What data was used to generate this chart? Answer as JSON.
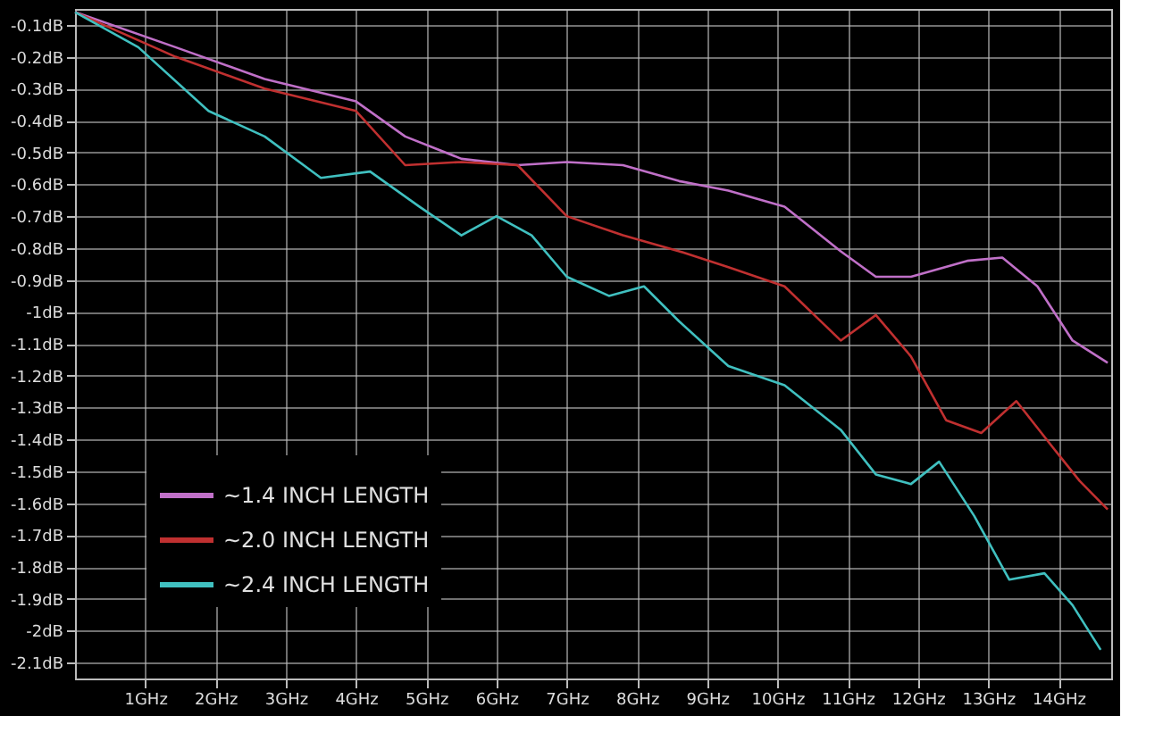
{
  "chart_data": {
    "type": "line",
    "xlim": [
      0,
      14.75
    ],
    "ylim": [
      -2.15,
      -0.05
    ],
    "xticks": [
      {
        "value": 1,
        "label": "1GHz"
      },
      {
        "value": 2,
        "label": "2GHz"
      },
      {
        "value": 3,
        "label": "3GHz"
      },
      {
        "value": 4,
        "label": "4GHz"
      },
      {
        "value": 5,
        "label": "5GHz"
      },
      {
        "value": 6,
        "label": "6GHz"
      },
      {
        "value": 7,
        "label": "7GHz"
      },
      {
        "value": 8,
        "label": "8GHz"
      },
      {
        "value": 9,
        "label": "9GHz"
      },
      {
        "value": 10,
        "label": "10GHz"
      },
      {
        "value": 11,
        "label": "11GHz"
      },
      {
        "value": 12,
        "label": "12GHz"
      },
      {
        "value": 13,
        "label": "13GHz"
      },
      {
        "value": 14,
        "label": "14GHz"
      }
    ],
    "yticks": [
      {
        "value": -0.1,
        "label": "-0.1dB"
      },
      {
        "value": -0.2,
        "label": "-0.2dB"
      },
      {
        "value": -0.3,
        "label": "-0.3dB"
      },
      {
        "value": -0.4,
        "label": "-0.4dB"
      },
      {
        "value": -0.5,
        "label": "-0.5dB"
      },
      {
        "value": -0.6,
        "label": "-0.6dB"
      },
      {
        "value": -0.7,
        "label": "-0.7dB"
      },
      {
        "value": -0.8,
        "label": "-0.8dB"
      },
      {
        "value": -0.9,
        "label": "-0.9dB"
      },
      {
        "value": -1,
        "label": "-1dB"
      },
      {
        "value": -1.1,
        "label": "-1.1dB"
      },
      {
        "value": -1.2,
        "label": "-1.2dB"
      },
      {
        "value": -1.3,
        "label": "-1.3dB"
      },
      {
        "value": -1.4,
        "label": "-1.4dB"
      },
      {
        "value": -1.5,
        "label": "-1.5dB"
      },
      {
        "value": -1.6,
        "label": "-1.6dB"
      },
      {
        "value": -1.7,
        "label": "-1.7dB"
      },
      {
        "value": -1.8,
        "label": "-1.8dB"
      },
      {
        "value": -1.9,
        "label": "-1.9dB"
      },
      {
        "value": -2,
        "label": "-2dB"
      },
      {
        "value": -2.1,
        "label": "-2.1dB"
      }
    ],
    "grid": true,
    "legend": "bottom left",
    "marker": "none",
    "line_style": "solid",
    "series": [
      {
        "name": "~1.4 INCH LENGTH",
        "color": "#c070c8",
        "x": [
          0,
          1.43,
          2.7,
          4,
          4.7,
          5.5,
          6.3,
          7,
          7.8,
          8.6,
          9.3,
          10.1,
          10.9,
          11.4,
          11.9,
          12.7,
          13.2,
          13.7,
          14.2,
          14.7
        ],
        "values": [
          -0.06,
          -0.17,
          -0.27,
          -0.34,
          -0.45,
          -0.52,
          -0.54,
          -0.53,
          -0.54,
          -0.59,
          -0.62,
          -0.67,
          -0.81,
          -0.89,
          -0.89,
          -0.84,
          -0.83,
          -0.92,
          -1.09,
          -1.16
        ]
      },
      {
        "name": "~2.0 INCH LENGTH",
        "color": "#c03030",
        "x": [
          0,
          1.43,
          2.7,
          4,
          4.7,
          5.5,
          6.3,
          7,
          7.8,
          8.6,
          9.3,
          10.1,
          10.9,
          11.4,
          11.9,
          12.4,
          12.9,
          13.4,
          13.9,
          14.3,
          14.7
        ],
        "values": [
          -0.06,
          -0.2,
          -0.3,
          -0.37,
          -0.54,
          -0.53,
          -0.54,
          -0.7,
          -0.76,
          -0.81,
          -0.86,
          -0.92,
          -1.09,
          -1.01,
          -1.14,
          -1.34,
          -1.38,
          -1.28,
          -1.42,
          -1.53,
          -1.62
        ]
      },
      {
        "name": "~2.4 INCH LENGTH",
        "color": "#40c0c0",
        "x": [
          0,
          0.9,
          1.9,
          2.7,
          3.5,
          4.2,
          4.9,
          5.5,
          6,
          6.5,
          7,
          7.6,
          8.1,
          8.6,
          9.3,
          10.1,
          10.9,
          11.4,
          11.9,
          12.3,
          12.8,
          13.3,
          13.8,
          14.2,
          14.6
        ],
        "values": [
          -0.06,
          -0.17,
          -0.37,
          -0.45,
          -0.58,
          -0.56,
          -0.67,
          -0.76,
          -0.7,
          -0.76,
          -0.89,
          -0.95,
          -0.92,
          -1.03,
          -1.17,
          -1.23,
          -1.37,
          -1.51,
          -1.54,
          -1.47,
          -1.64,
          -1.84,
          -1.82,
          -1.92,
          -2.06
        ]
      }
    ]
  }
}
